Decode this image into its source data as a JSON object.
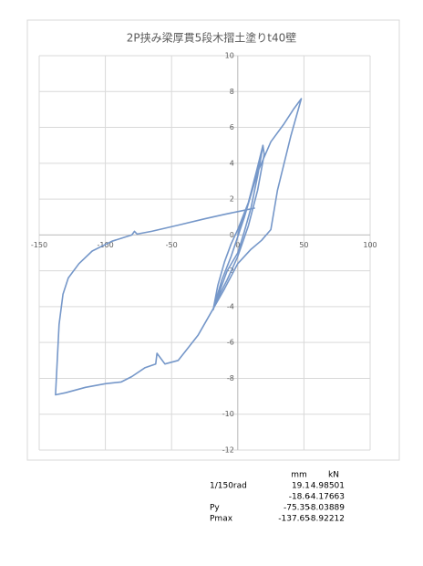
{
  "chart_data": {
    "type": "line",
    "title": "2P挟み梁厚貫5段木摺土塗りt40壁",
    "xlim": [
      -150,
      100
    ],
    "xticks": [
      -150,
      -100,
      -50,
      0,
      50,
      100
    ],
    "ylim": [
      -12,
      10
    ],
    "yticks": [
      -12,
      -10,
      -8,
      -6,
      -4,
      -2,
      0,
      2,
      4,
      6,
      8,
      10
    ],
    "grid": true,
    "x": [
      0,
      3,
      8,
      13,
      19.1,
      15,
      10,
      5,
      0,
      -8,
      -13,
      -18.6,
      -15,
      -10,
      -5,
      0,
      8,
      14,
      19,
      20,
      15,
      8,
      0,
      -8,
      -15,
      -18,
      -12,
      -5,
      5,
      15,
      25,
      35,
      42,
      48,
      40,
      30,
      25,
      18,
      10,
      0,
      -10,
      -20,
      -30,
      -45,
      -55,
      -61,
      -62,
      -70,
      -80,
      -88,
      -100,
      -115,
      -130,
      -137.65,
      -135,
      -132,
      -128,
      -120,
      -110,
      -95,
      -80,
      -78,
      -76,
      -65,
      -45,
      -25,
      -10,
      0,
      13
    ],
    "series": [
      {
        "color": "#7597c9",
        "values": [
          0,
          0.8,
          1.8,
          3.0,
          4.985,
          3.3,
          1.5,
          0.2,
          -1,
          -2,
          -3,
          -4.18,
          -2.8,
          -1.5,
          -0.5,
          0.3,
          1.8,
          3.5,
          5.0,
          4.5,
          2.5,
          0.5,
          -1.2,
          -2.5,
          -3.5,
          -4.0,
          -2.5,
          -1.2,
          1,
          3.5,
          5.2,
          6.2,
          7,
          7.6,
          5.5,
          2.5,
          0.3,
          -0.3,
          -0.8,
          -1.6,
          -3,
          -4.3,
          -5.6,
          -7,
          -7.2,
          -6.6,
          -7.2,
          -7.4,
          -7.9,
          -8.2,
          -8.3,
          -8.5,
          -8.8,
          -8.92,
          -5,
          -3.3,
          -2.4,
          -1.6,
          -0.9,
          -0.35,
          0,
          0.2,
          0.05,
          0.2,
          0.55,
          0.9,
          1.15,
          1.3,
          1.5
        ]
      }
    ]
  },
  "table": {
    "columns": [
      "mm",
      "kN"
    ],
    "rows": [
      [
        "1/150rad",
        19.1,
        4.98501
      ],
      [
        null,
        -18.6,
        -4.17663
      ],
      [
        "Py",
        -75.35,
        -8.03889
      ],
      [
        "Pmax",
        -137.65,
        -8.92212
      ]
    ]
  }
}
